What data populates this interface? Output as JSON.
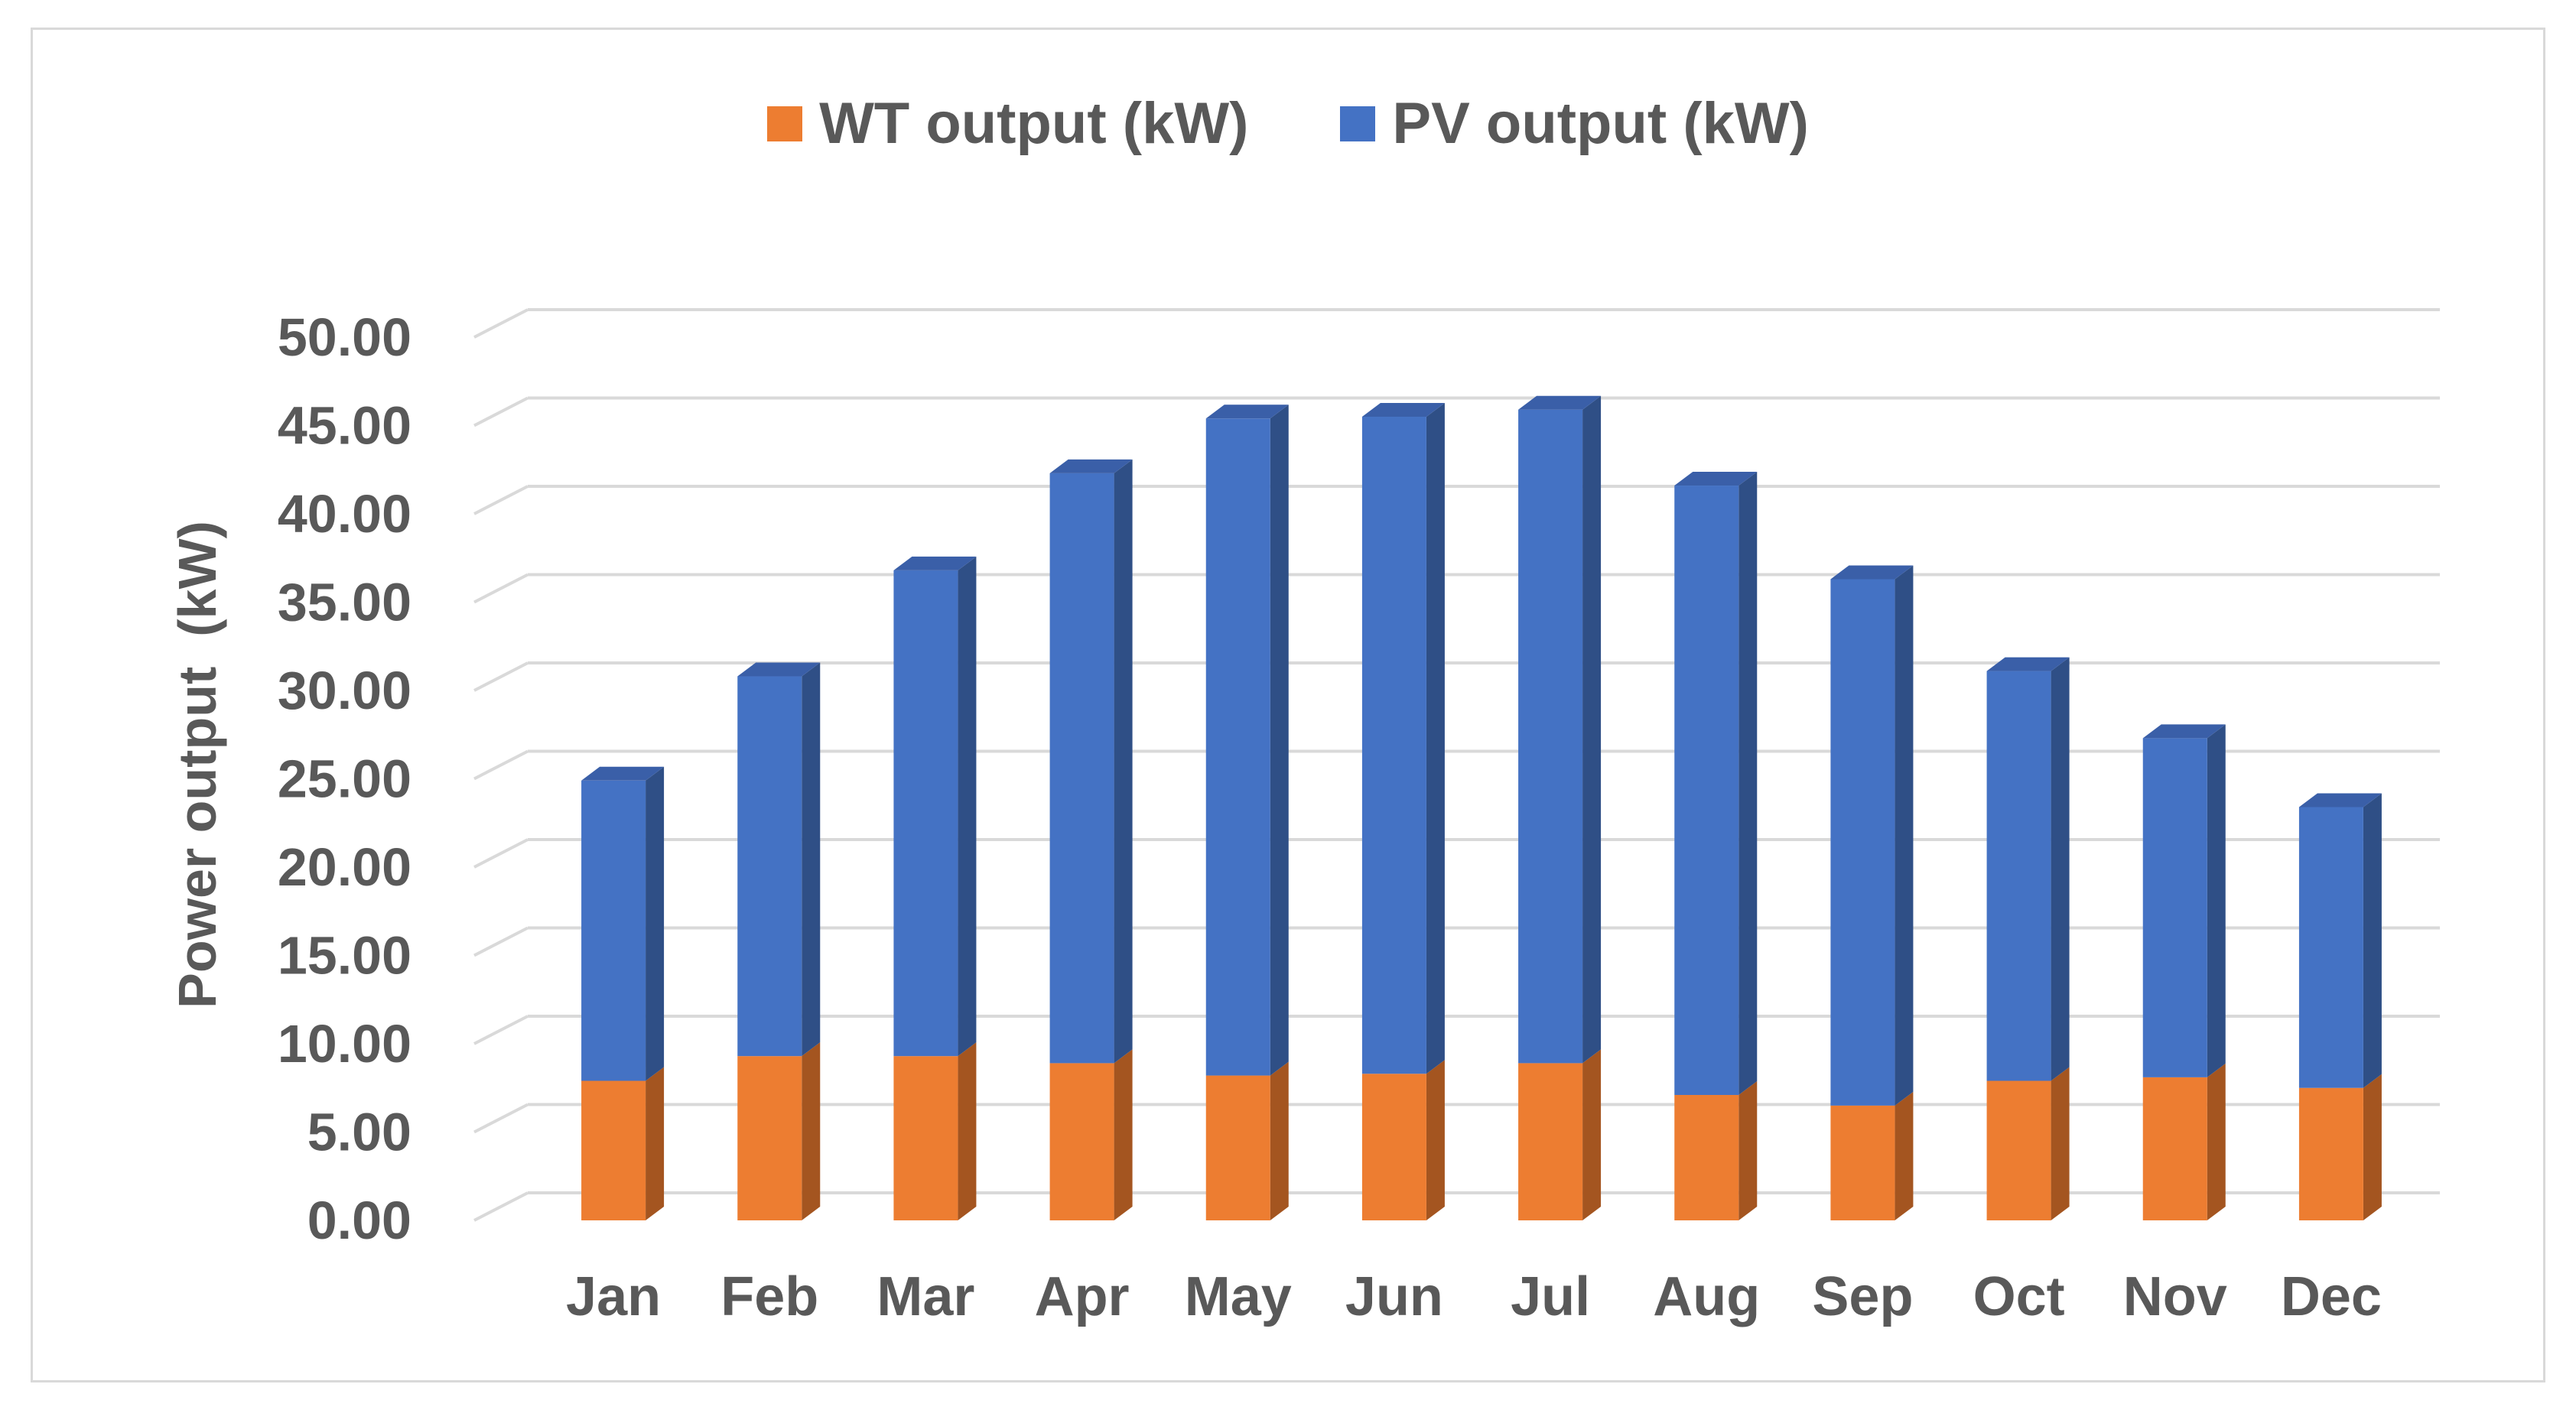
{
  "chart_data": {
    "type": "bar",
    "stacked": true,
    "three_d": true,
    "categories": [
      "Jan",
      "Feb",
      "Mar",
      "Apr",
      "May",
      "Jun",
      "Jul",
      "Aug",
      "Sep",
      "Oct",
      "Nov",
      "Dec"
    ],
    "series": [
      {
        "name": "WT output (kW)",
        "color": "#ED7D31",
        "values": [
          7.9,
          9.3,
          9.3,
          8.9,
          8.2,
          8.3,
          8.9,
          7.1,
          6.5,
          7.9,
          8.1,
          7.5
        ]
      },
      {
        "name": "PV output (kW)",
        "color": "#4472C4",
        "values": [
          17.0,
          21.5,
          27.5,
          33.4,
          37.2,
          37.2,
          37.0,
          34.5,
          29.8,
          23.2,
          19.2,
          15.9
        ]
      }
    ],
    "title": "",
    "xlabel": "",
    "ylabel": "Power output  (kW)",
    "ylim": [
      0,
      50
    ],
    "yticks": [
      "0.00",
      "5.00",
      "10.00",
      "15.00",
      "20.00",
      "25.00",
      "30.00",
      "35.00",
      "40.00",
      "45.00",
      "50.00"
    ],
    "grid": true,
    "legend_position": "top"
  },
  "colors": {
    "wt_side": "#A45520",
    "wt_top": "#C9661F",
    "pv_side": "#2F4F86",
    "pv_top": "#3A5FA8",
    "grid": "#d9d9d9",
    "text": "#595959"
  }
}
